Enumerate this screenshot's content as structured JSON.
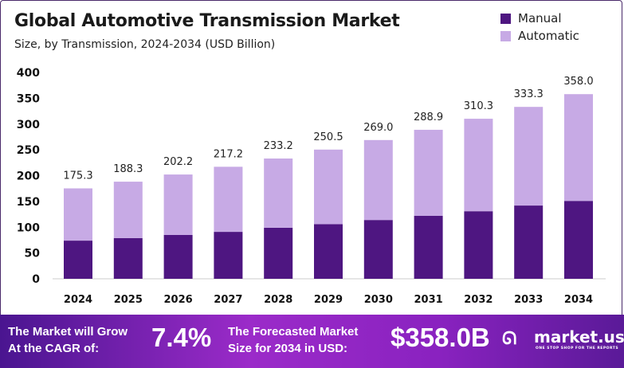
{
  "chart_data": {
    "type": "bar",
    "stacked": true,
    "title": "Global Automotive Transmission Market",
    "subtitle": "Size, by Transmission, 2024-2034 (USD Billion)",
    "categories": [
      "2024",
      "2025",
      "2026",
      "2027",
      "2028",
      "2029",
      "2030",
      "2031",
      "2032",
      "2033",
      "2034"
    ],
    "series": [
      {
        "name": "Manual",
        "color": "#4e1681",
        "values": [
          74,
          79,
          85,
          91,
          99,
          106,
          114,
          122,
          131,
          142,
          151
        ]
      },
      {
        "name": "Automatic",
        "color": "#c7aae5",
        "values": [
          101.3,
          109.3,
          117.2,
          126.2,
          134.2,
          144.5,
          155.0,
          166.9,
          179.3,
          191.3,
          207.0
        ]
      }
    ],
    "totals": [
      "175.3",
      "188.3",
      "202.2",
      "217.2",
      "233.2",
      "250.5",
      "269.0",
      "288.9",
      "310.3",
      "333.3",
      "358.0"
    ],
    "yticks": [
      0,
      50,
      100,
      150,
      200,
      250,
      300,
      350,
      400
    ],
    "ylim": [
      0,
      400
    ],
    "grid": false,
    "legend": "top-right"
  },
  "footer": {
    "cagr_label_1": "The Market will Grow",
    "cagr_label_2": "At the CAGR of:",
    "cagr_value": "7.4%",
    "forecast_label_1": "The Forecasted Market",
    "forecast_label_2": "Size for 2034 in USD:",
    "forecast_value": "$358.0B",
    "brand": "market.us",
    "brand_tagline": "ONE STOP SHOP FOR THE REPORTS"
  }
}
